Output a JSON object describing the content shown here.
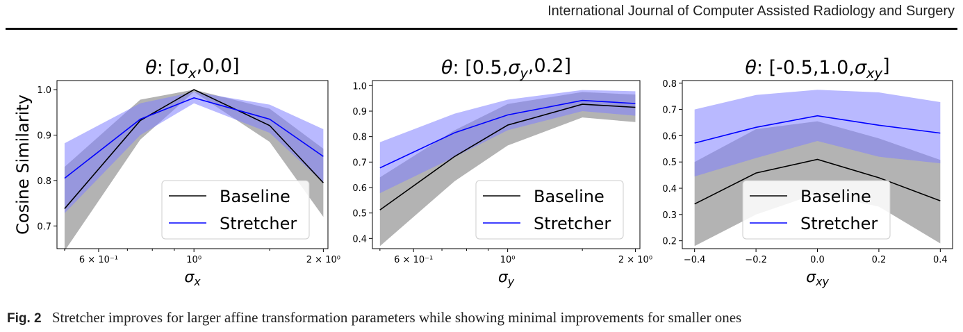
{
  "header": {
    "journal": "International Journal of Computer Assisted Radiology and Surgery"
  },
  "caption": {
    "label": "Fig. 2",
    "text": "Stretcher improves for larger affine transformation parameters while showing minimal improvements for smaller ones"
  },
  "colors": {
    "baseline": "#000000",
    "stretcher": "#0000ff",
    "baseline_band": "#808080",
    "stretcher_band": "#7f7fff"
  },
  "chart_data": [
    {
      "type": "line",
      "title": "θ: [σx,0,0]",
      "xlabel": "σx",
      "ylabel": "Cosine Similarity",
      "xscale": "log",
      "xlim": [
        0.48,
        2.05
      ],
      "ylim": [
        0.65,
        1.02
      ],
      "xticks": [
        {
          "value": 0.6,
          "label": "6 × 10⁻¹"
        },
        {
          "value": 1.0,
          "label": "10⁰"
        },
        {
          "value": 2.0,
          "label": "2 × 10⁰"
        }
      ],
      "yticks": [
        0.7,
        0.8,
        0.9,
        1.0
      ],
      "legend": {
        "position": "lower-right",
        "entries": [
          "Baseline",
          "Stretcher"
        ]
      },
      "x": [
        0.5,
        0.75,
        1.0,
        1.5,
        2.0
      ],
      "series": [
        {
          "name": "Baseline",
          "values": [
            0.738,
            0.932,
            1.0,
            0.921,
            0.795
          ],
          "lower": [
            0.645,
            0.89,
            0.995,
            0.885,
            0.72
          ],
          "upper": [
            0.83,
            0.978,
            1.0,
            0.958,
            0.87
          ]
        },
        {
          "name": "Stretcher",
          "values": [
            0.805,
            0.935,
            0.982,
            0.935,
            0.853
          ],
          "lower": [
            0.728,
            0.9,
            0.97,
            0.905,
            0.795
          ],
          "upper": [
            0.882,
            0.97,
            0.995,
            0.967,
            0.913
          ]
        }
      ]
    },
    {
      "type": "line",
      "title": "θ: [0.5,σy,0.2]",
      "xlabel": "σy",
      "ylabel": "",
      "xscale": "log",
      "xlim": [
        0.48,
        2.05
      ],
      "ylim": [
        0.36,
        1.02
      ],
      "xticks": [
        {
          "value": 0.6,
          "label": "6 × 10⁻¹"
        },
        {
          "value": 1.0,
          "label": "10⁰"
        },
        {
          "value": 2.0,
          "label": "2 × 10⁰"
        }
      ],
      "yticks": [
        0.4,
        0.5,
        0.6,
        0.7,
        0.8,
        0.9,
        1.0
      ],
      "legend": {
        "position": "lower-right",
        "entries": [
          "Baseline",
          "Stretcher"
        ]
      },
      "x": [
        0.5,
        0.75,
        1.0,
        1.5,
        2.0
      ],
      "series": [
        {
          "name": "Baseline",
          "values": [
            0.512,
            0.722,
            0.845,
            0.927,
            0.915
          ],
          "lower": [
            0.37,
            0.625,
            0.765,
            0.875,
            0.857
          ],
          "upper": [
            0.64,
            0.825,
            0.928,
            0.975,
            0.965
          ]
        },
        {
          "name": "Stretcher",
          "values": [
            0.677,
            0.815,
            0.885,
            0.942,
            0.93
          ],
          "lower": [
            0.578,
            0.72,
            0.825,
            0.9,
            0.882
          ],
          "upper": [
            0.778,
            0.89,
            0.945,
            0.983,
            0.978
          ]
        }
      ]
    },
    {
      "type": "line",
      "title": "θ: [-0.5,1.0,σxy]",
      "xlabel": "σxy",
      "ylabel": "",
      "xscale": "linear",
      "xlim": [
        -0.44,
        0.44
      ],
      "ylim": [
        0.17,
        0.81
      ],
      "xticks": [
        {
          "value": -0.4,
          "label": "−0.4"
        },
        {
          "value": -0.2,
          "label": "−0.2"
        },
        {
          "value": 0.0,
          "label": "0.0"
        },
        {
          "value": 0.2,
          "label": "0.2"
        },
        {
          "value": 0.4,
          "label": "0.4"
        }
      ],
      "yticks": [
        0.2,
        0.3,
        0.4,
        0.5,
        0.6,
        0.7,
        0.8
      ],
      "legend": {
        "position": "lower-center",
        "entries": [
          "Baseline",
          "Stretcher"
        ]
      },
      "x": [
        -0.4,
        -0.2,
        0.0,
        0.2,
        0.4
      ],
      "series": [
        {
          "name": "Baseline",
          "values": [
            0.34,
            0.458,
            0.51,
            0.44,
            0.352
          ],
          "lower": [
            0.18,
            0.3,
            0.38,
            0.33,
            0.19
          ],
          "upper": [
            0.5,
            0.625,
            0.655,
            0.59,
            0.508
          ]
        },
        {
          "name": "Stretcher",
          "values": [
            0.572,
            0.632,
            0.676,
            0.64,
            0.61
          ],
          "lower": [
            0.445,
            0.515,
            0.58,
            0.52,
            0.495
          ],
          "upper": [
            0.7,
            0.755,
            0.775,
            0.765,
            0.728
          ]
        }
      ]
    }
  ]
}
